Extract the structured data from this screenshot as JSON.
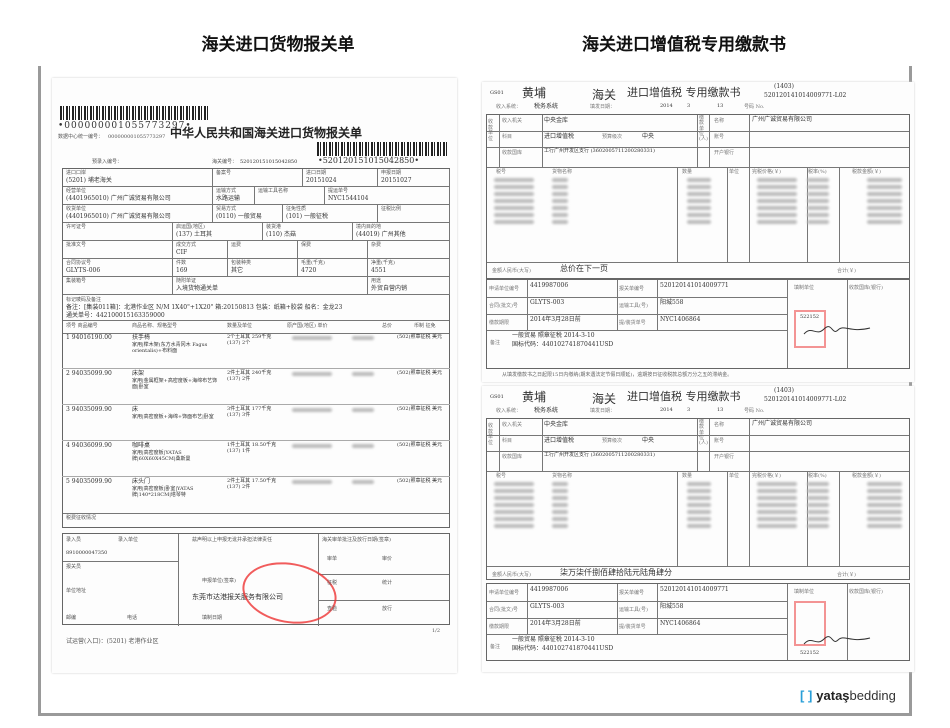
{
  "headings": {
    "left": "海关进口货物报关单",
    "right": "海关进口增值税专用缴款书"
  },
  "declaration": {
    "barcode_top": "•000000001055773297•",
    "data_center_label": "数据中心统一编号：",
    "data_center_no": "000000001055773297",
    "title": "中华人民共和国海关进口货物报关单",
    "barcode_right": "•520120151015042850•",
    "pre_entry_label": "预录入编号：",
    "customs_no_label": "海关编号：",
    "customs_no": "520120151015042850",
    "fields": [
      {
        "label": "进口口岸",
        "value": "(5201) 埔老海关"
      },
      {
        "label": "备案号",
        "value": ""
      },
      {
        "label": "进口日期",
        "value": "20151024"
      },
      {
        "label": "申报日期",
        "value": "20151027"
      },
      {
        "label": "经营单位",
        "value": "(4401965010) 广州广诚贸易有限公司"
      },
      {
        "label": "运输方式",
        "value": "水路运输"
      },
      {
        "label": "运输工具名称",
        "value": ""
      },
      {
        "label": "提运单号",
        "value": "NYC1544104"
      },
      {
        "label": "收货单位",
        "value": "(4401965010) 广州广诚贸易有限公司"
      },
      {
        "label": "贸易方式",
        "value": "(0110) 一般贸易"
      },
      {
        "label": "征免性质",
        "value": "(101) 一般征税"
      },
      {
        "label": "征税比例",
        "value": ""
      },
      {
        "label": "许可证号",
        "value": ""
      },
      {
        "label": "启运国(地区)",
        "value": "(137) 土耳其"
      },
      {
        "label": "装货港",
        "value": "(110) 杰菇"
      },
      {
        "label": "境内目的地",
        "value": "(44019) 广州其他"
      },
      {
        "label": "批准文号",
        "value": ""
      },
      {
        "label": "成交方式",
        "value": "CIF"
      },
      {
        "label": "运费",
        "value": ""
      },
      {
        "label": "保费",
        "value": ""
      },
      {
        "label": "杂费",
        "value": ""
      },
      {
        "label": "合同协议号",
        "value": "GLYTS-006"
      },
      {
        "label": "件数",
        "value": "169"
      },
      {
        "label": "包装种类",
        "value": "其它"
      },
      {
        "label": "毛重(千克)",
        "value": "4720"
      },
      {
        "label": "净重(千克)",
        "value": "4551"
      },
      {
        "label": "集装箱号",
        "value": ""
      },
      {
        "label": "随附单证",
        "value": "入境货物通关单"
      },
      {
        "label": "用途",
        "value": "外贸自营内销"
      }
    ],
    "marks_label": "标记唛码及备注",
    "remarks": "备注：[集装011箱]：北港作业区 N/M 1X40\"+1X20\" 箱:20150813 包装：纸箱+胶袋 船名：金龙23",
    "remarks2": "通关单号：442100015163359000",
    "item_headers": [
      "项号 商品编号",
      "商品名称、规格型号",
      "数量及单位",
      "原产国(地区) 单价",
      "总价",
      "币制 征免"
    ],
    "items": [
      {
        "no": "1",
        "code": "94016190.00",
        "name": "扶手椅",
        "spec": "家用|榉木架(东方水青冈木 Fagus orientalis)+布料面",
        "qty": "2个土耳其 259千克(137) 2个",
        "cur": "(502)照章征税 美元"
      },
      {
        "no": "2",
        "code": "94035099.90",
        "name": "床架",
        "spec": "家用|金属框架+高密度板+海绵布艺饰面|卧室",
        "qty": "2件土耳其 240千克(137) 2件",
        "cur": "(502)照章征税 美元"
      },
      {
        "no": "3",
        "code": "94035099.90",
        "name": "床",
        "spec": "家用|高密度板+海绵+饰面布艺|卧室",
        "qty": "3件土耳其 177千克(137) 3件",
        "cur": "(502)照章征税 美元"
      },
      {
        "no": "4",
        "code": "94036099.90",
        "name": "咖啡桌",
        "spec": "家用|高密度板|YATAS牌|60X60X45CM|桑斯曼",
        "qty": "1件土耳其 18.50千克(137) 1件",
        "cur": "(502)照章征税 美元"
      },
      {
        "no": "5",
        "code": "94035099.90",
        "name": "床头门",
        "spec": "家用|高密度板|卧室|YATAS牌|140*218CM|塔琴特",
        "qty": "2件土耳其 17.50千克(137) 2件",
        "cur": "(502)照章征税 美元"
      }
    ],
    "tax_label": "税费征收情况",
    "entry_clerk_label": "录入员",
    "entry_unit_label": "录入单位",
    "entry_no": "8910000047350",
    "declarer_label": "报关员",
    "unit_addr_label": "单位地址",
    "postcode_label": "邮编",
    "phone_label": "电话",
    "fill_date_label": "填制日期",
    "statement": "兹声明以上申报无讹并承担法律责任",
    "declaring_unit_label": "申报单位(签章)",
    "declaring_unit": "东莞市达港报关服务有限公司",
    "approval_label": "海关审单批注及放行日期(签章)",
    "approval_fields": [
      "审单",
      "审价",
      "征税",
      "统计",
      "查验",
      "放行"
    ],
    "footer": "试运营(入口)：(5201) 老港作业区",
    "page": "1/2"
  },
  "receipts": [
    {
      "code": "GS01",
      "port": "黄埔",
      "customs": "海关",
      "title": "进口增值税 专用缴款书",
      "ref": "(1403)",
      "number": "520120141014009771-L02",
      "income_system_label": "收入系统：",
      "income_system": "税务系统",
      "issue_date_label": "填发日期：",
      "year": "2014",
      "month": "3",
      "day": "13",
      "no_label": "号码 No.",
      "collector_label": "收款单位",
      "payer_label": "缴款单位(人)",
      "authority_label": "收入机关",
      "authority": "中央金库",
      "subject_label": "科目",
      "subject": "进口增值税",
      "budget_label": "预算级次",
      "budget": "中央",
      "treasury_label": "收款国库",
      "treasury": "工行广州开发区支行 (3602005711200280331)",
      "name_label": "名称",
      "name": "广州广诚贸易有限公司",
      "account_label": "账号",
      "bank_label": "开户银行",
      "col_headers": [
        "税号",
        "货物名称",
        "数量",
        "单位",
        "完税价格(￥)",
        "税率(%)",
        "税款金额(￥)"
      ],
      "amount_label": "金额人民币(大写)",
      "amount": "总价在下一页",
      "total_label": "合计(￥)",
      "applicant_label": "申请单位编号",
      "applicant": "4419987006",
      "decl_no_label": "报关单编号",
      "decl_no": "520120141014009771",
      "contract_label": "合同(批文)号",
      "contract": "GLYTS-003",
      "transport_label": "运输工具(号)",
      "transport": "阳城558",
      "deadline_label": "缴款期限",
      "deadline": "2014年3月28日前",
      "bill_label": "提/装货单号",
      "bill": "NYC1406864",
      "remark_label": "备注",
      "remark1": "一般贸易 照章征税 2014-3-10",
      "remark2": "国标代码：440102741870441USD",
      "filler_label": "填制单位",
      "bank_recv_label": "收款国库(银行)",
      "seal_no": "522152",
      "footnote": "从填发缴款书之日起限15日内缴纳(期末遇法定节假日顺延)，逾期按日征收税款总额万分之五的滞纳金。"
    },
    {
      "code": "GS01",
      "port": "黄埔",
      "customs": "海关",
      "title": "进口增值税 专用缴款书",
      "ref": "(1403)",
      "number": "520120141014009771-L02",
      "income_system_label": "收入系统：",
      "income_system": "税务系统",
      "issue_date_label": "填发日期：",
      "year": "2014",
      "month": "3",
      "day": "13",
      "no_label": "号码 No.",
      "collector_label": "收款单位",
      "payer_label": "缴款单位(人)",
      "authority_label": "收入机关",
      "authority": "中央金库",
      "subject_label": "科目",
      "subject": "进口增值税",
      "budget_label": "预算级次",
      "budget": "中央",
      "treasury_label": "收款国库",
      "treasury": "工行广州开发区支行 (3602005711200280331)",
      "name_label": "名称",
      "name": "广州广诚贸易有限公司",
      "account_label": "账号",
      "bank_label": "开户银行",
      "col_headers": [
        "税号",
        "货物名称",
        "数量",
        "单位",
        "完税价格(￥)",
        "税率(%)",
        "税款金额(￥)"
      ],
      "amount_label": "金额人民币(大写)",
      "amount": "柒万柒仟捌佰肆拾陆元陆角肆分",
      "total_label": "合计(￥)",
      "applicant_label": "申请单位编号",
      "applicant": "4419987006",
      "decl_no_label": "报关单编号",
      "decl_no": "520120141014009771",
      "contract_label": "合同(批文)号",
      "contract": "GLYTS-003",
      "transport_label": "运输工具(号)",
      "transport": "阳城558",
      "deadline_label": "缴款期限",
      "deadline": "2014年3月28日前",
      "bill_label": "提/装货单号",
      "bill": "NYC1406864",
      "remark_label": "备注",
      "remark1": "一般贸易 照章征税 2014-3-10",
      "remark2": "国标代码：440102741870441USD",
      "filler_label": "填制单位",
      "bank_recv_label": "收款国库(银行)",
      "seal_no": "522152",
      "footnote": ""
    }
  ],
  "logo": {
    "bracket": "[ ]",
    "brand": "yataş",
    "suffix": "bedding",
    "accent": "#2a9fd8"
  }
}
